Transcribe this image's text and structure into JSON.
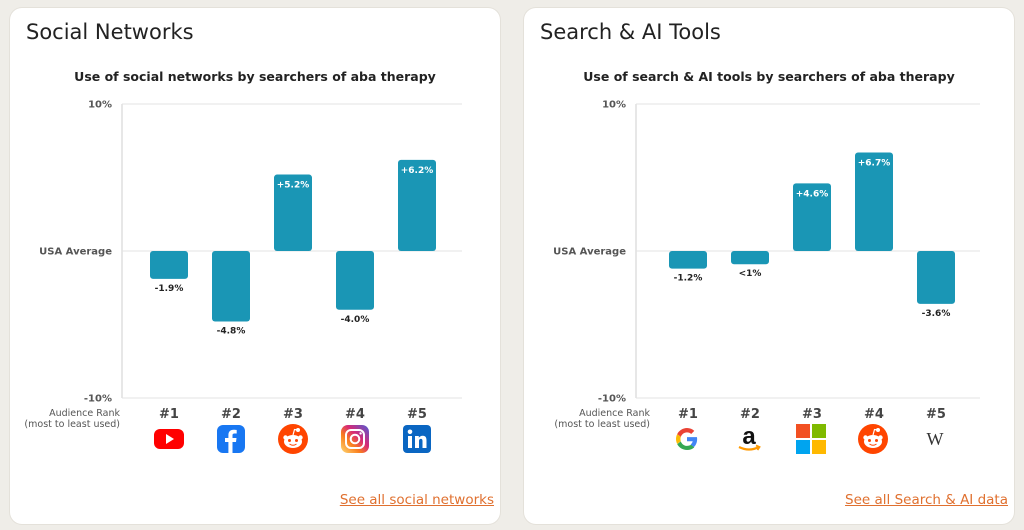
{
  "panels": [
    {
      "heading": "Social Networks",
      "link": "See all social networks",
      "rank_label_line1": "Audience Rank",
      "rank_label_line2": "(most to least used)",
      "icons": [
        "youtube-icon",
        "facebook-icon",
        "reddit-icon",
        "instagram-icon",
        "linkedin-icon"
      ],
      "chart_data": {
        "type": "bar",
        "title": "Use of social networks by searchers of aba therapy",
        "categories": [
          "#1",
          "#2",
          "#3",
          "#4",
          "#5"
        ],
        "values": [
          -1.9,
          -4.8,
          5.2,
          -4.0,
          6.2
        ],
        "data_labels": [
          "-1.9%",
          "-4.8%",
          "+5.2%",
          "-4.0%",
          "+6.2%"
        ],
        "ylim": [
          -10,
          10
        ],
        "yticks": [
          {
            "value": 10,
            "label": "10%"
          },
          {
            "value": 0,
            "label": "USA Average"
          },
          {
            "value": -10,
            "label": "-10%"
          }
        ],
        "bar_color": "#1a96b5",
        "grid": true
      }
    },
    {
      "heading": "Search & AI Tools",
      "link": "See all Search & AI data",
      "rank_label_line1": "Audience Rank",
      "rank_label_line2": "(most to least used)",
      "icons": [
        "google-icon",
        "amazon-icon",
        "microsoft-icon",
        "reddit-icon",
        "wikipedia-icon"
      ],
      "chart_data": {
        "type": "bar",
        "title": "Use of search & AI tools by searchers of aba therapy",
        "categories": [
          "#1",
          "#2",
          "#3",
          "#4",
          "#5"
        ],
        "values": [
          -1.2,
          -0.9,
          4.6,
          6.7,
          -3.6
        ],
        "data_labels": [
          "-1.2%",
          "<1%",
          "+4.6%",
          "+6.7%",
          "-3.6%"
        ],
        "ylim": [
          -10,
          10
        ],
        "yticks": [
          {
            "value": 10,
            "label": "10%"
          },
          {
            "value": 0,
            "label": "USA Average"
          },
          {
            "value": -10,
            "label": "-10%"
          }
        ],
        "bar_color": "#1a96b5",
        "grid": true
      }
    }
  ],
  "wikipedia_glyph": "W"
}
